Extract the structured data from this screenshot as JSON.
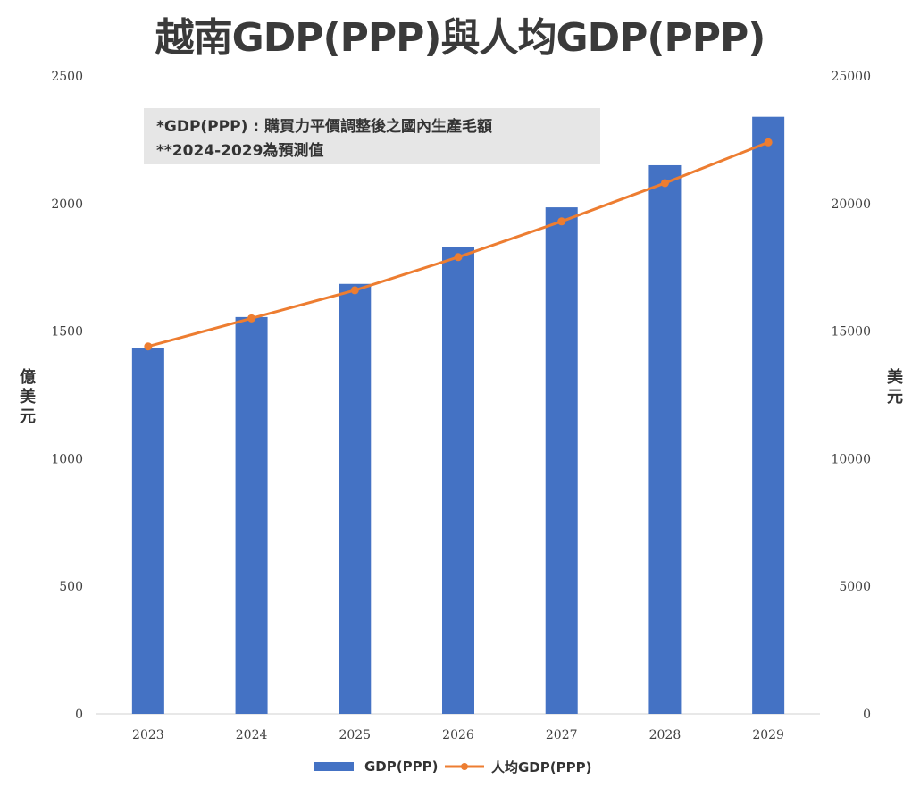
{
  "chart_data": {
    "type": "bar",
    "title": "越南GDP(PPP)與人均GDP(PPP)",
    "note_lines": [
      "*GDP(PPP) : 購買力平價調整後之國內生產毛額",
      "**2024-2029為預測值"
    ],
    "categories": [
      "2023",
      "2024",
      "2025",
      "2026",
      "2027",
      "2028",
      "2029"
    ],
    "series": [
      {
        "name": "GDP(PPP)",
        "type": "bar",
        "axis": "left",
        "color": "#4472c4",
        "values": [
          1435,
          1555,
          1685,
          1830,
          1985,
          2150,
          2340
        ]
      },
      {
        "name": "人均GDP(PPP)",
        "type": "line",
        "axis": "right",
        "color": "#ed7d31",
        "values": [
          14400,
          15500,
          16600,
          17900,
          19300,
          20800,
          22400
        ]
      }
    ],
    "left_axis": {
      "label": "億美元",
      "ylim": [
        0,
        2500
      ],
      "ticks": [
        "0",
        "500",
        "1000",
        "1500",
        "2000",
        "2500"
      ]
    },
    "right_axis": {
      "label": "美元",
      "ylim": [
        0,
        25000
      ],
      "ticks": [
        "0",
        "5000",
        "10000",
        "15000",
        "20000",
        "25000"
      ]
    },
    "grid": false,
    "legend_position": "bottom"
  }
}
